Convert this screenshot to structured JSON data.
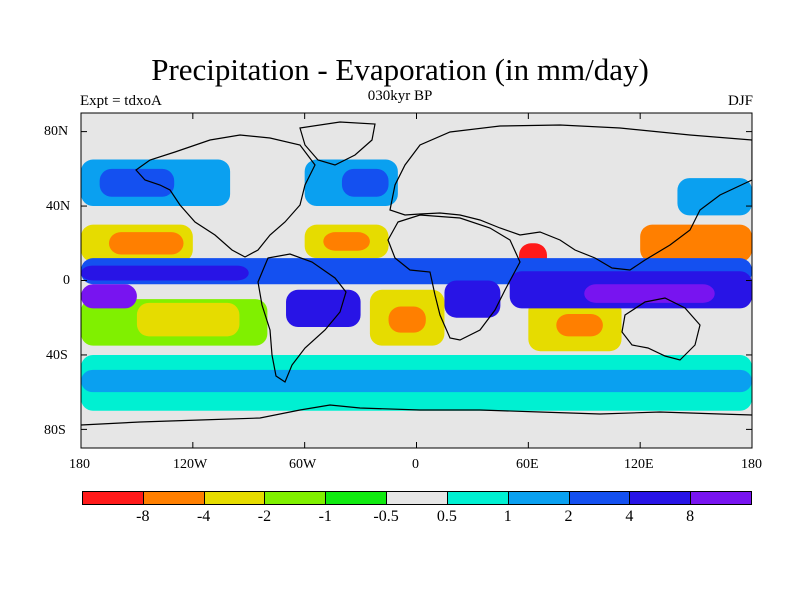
{
  "title": "Precipitation - Evaporation (in mm/day)",
  "subtitle": "030kyr BP",
  "left_label": "Expt = tdxoA",
  "right_label": "DJF",
  "x_ticks": [
    "180",
    "120W",
    "60W",
    "0",
    "60E",
    "120E",
    "180"
  ],
  "y_ticks": [
    "80N",
    "40N",
    "0",
    "40S",
    "80S"
  ],
  "colorbar": {
    "colors": [
      "#ff1a1a",
      "#ff7f00",
      "#e6dc00",
      "#80f000",
      "#10ea10",
      "#e6e6e6",
      "#00f0d2",
      "#0aa0f0",
      "#1450f0",
      "#2814e6",
      "#7814f0"
    ],
    "labels": [
      "-8",
      "-4",
      "-2",
      "-1",
      "-0.5",
      "0.5",
      "1",
      "2",
      "4",
      "8"
    ]
  },
  "chart_data": {
    "type": "heatmap",
    "title": "Precipitation - Evaporation (in mm/day)",
    "xlabel": "",
    "ylabel": "",
    "xlim": [
      -180,
      180
    ],
    "ylim": [
      -90,
      90
    ],
    "x_ticks": [
      "180",
      "120W",
      "60W",
      "0",
      "60E",
      "120E",
      "180"
    ],
    "y_ticks": [
      "80N",
      "40N",
      "0",
      "40S",
      "80S"
    ],
    "levels": [
      -8,
      -4,
      -2,
      -1,
      -0.5,
      0.5,
      1,
      2,
      4,
      8
    ],
    "regions": [
      {
        "lon": [
          -180,
          180
        ],
        "lat": [
          -90,
          90
        ],
        "class": 5
      },
      {
        "lon": [
          -180,
          180
        ],
        "lat": [
          -70,
          -40
        ],
        "class": 6
      },
      {
        "lon": [
          -180,
          180
        ],
        "lat": [
          -60,
          -48
        ],
        "class": 7
      },
      {
        "lon": [
          -180,
          -100
        ],
        "lat": [
          40,
          65
        ],
        "class": 7
      },
      {
        "lon": [
          -170,
          -130
        ],
        "lat": [
          45,
          60
        ],
        "class": 8
      },
      {
        "lon": [
          -60,
          -10
        ],
        "lat": [
          40,
          65
        ],
        "class": 7
      },
      {
        "lon": [
          -40,
          -15
        ],
        "lat": [
          45,
          60
        ],
        "class": 8
      },
      {
        "lon": [
          140,
          180
        ],
        "lat": [
          35,
          55
        ],
        "class": 7
      },
      {
        "lon": [
          -180,
          -120
        ],
        "lat": [
          10,
          30
        ],
        "class": 2
      },
      {
        "lon": [
          -165,
          -125
        ],
        "lat": [
          14,
          26
        ],
        "class": 1
      },
      {
        "lon": [
          -60,
          -15
        ],
        "lat": [
          12,
          30
        ],
        "class": 2
      },
      {
        "lon": [
          -50,
          -25
        ],
        "lat": [
          16,
          26
        ],
        "class": 1
      },
      {
        "lon": [
          55,
          70
        ],
        "lat": [
          5,
          20
        ],
        "class": 0
      },
      {
        "lon": [
          120,
          180
        ],
        "lat": [
          10,
          30
        ],
        "class": 1
      },
      {
        "lon": [
          -180,
          -80
        ],
        "lat": [
          -35,
          -10
        ],
        "class": 3
      },
      {
        "lon": [
          -150,
          -95
        ],
        "lat": [
          -30,
          -12
        ],
        "class": 2
      },
      {
        "lon": [
          -25,
          15
        ],
        "lat": [
          -35,
          -5
        ],
        "class": 2
      },
      {
        "lon": [
          -15,
          5
        ],
        "lat": [
          -28,
          -14
        ],
        "class": 1
      },
      {
        "lon": [
          60,
          110
        ],
        "lat": [
          -38,
          -10
        ],
        "class": 2
      },
      {
        "lon": [
          75,
          100
        ],
        "lat": [
          -30,
          -18
        ],
        "class": 1
      },
      {
        "lon": [
          -180,
          180
        ],
        "lat": [
          -2,
          12
        ],
        "class": 8
      },
      {
        "lon": [
          -180,
          -90
        ],
        "lat": [
          0,
          8
        ],
        "class": 9
      },
      {
        "lon": [
          50,
          180
        ],
        "lat": [
          -15,
          5
        ],
        "class": 9
      },
      {
        "lon": [
          90,
          160
        ],
        "lat": [
          -12,
          -2
        ],
        "class": 10
      },
      {
        "lon": [
          -180,
          -150
        ],
        "lat": [
          -15,
          -2
        ],
        "class": 10
      },
      {
        "lon": [
          -70,
          -30
        ],
        "lat": [
          -25,
          -5
        ],
        "class": 9
      },
      {
        "lon": [
          15,
          45
        ],
        "lat": [
          -20,
          0
        ],
        "class": 9
      }
    ]
  }
}
